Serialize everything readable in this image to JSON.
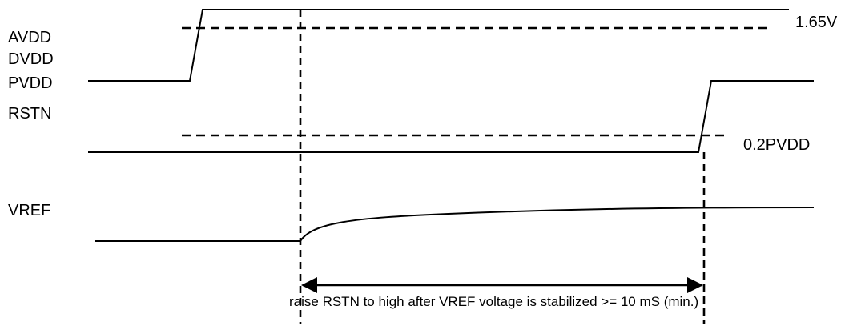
{
  "signals": {
    "power_labels": [
      "AVDD",
      "DVDD",
      "PVDD"
    ],
    "rstn_label": "RSTN",
    "vref_label": "VREF"
  },
  "thresholds": {
    "power": "1.65V",
    "rstn": "0.2PVDD"
  },
  "annotation": "raise RSTN to high after VREF voltage is stabilized >= 10 mS (min.)",
  "colors": {
    "line": "#000000",
    "background": "#ffffff"
  }
}
